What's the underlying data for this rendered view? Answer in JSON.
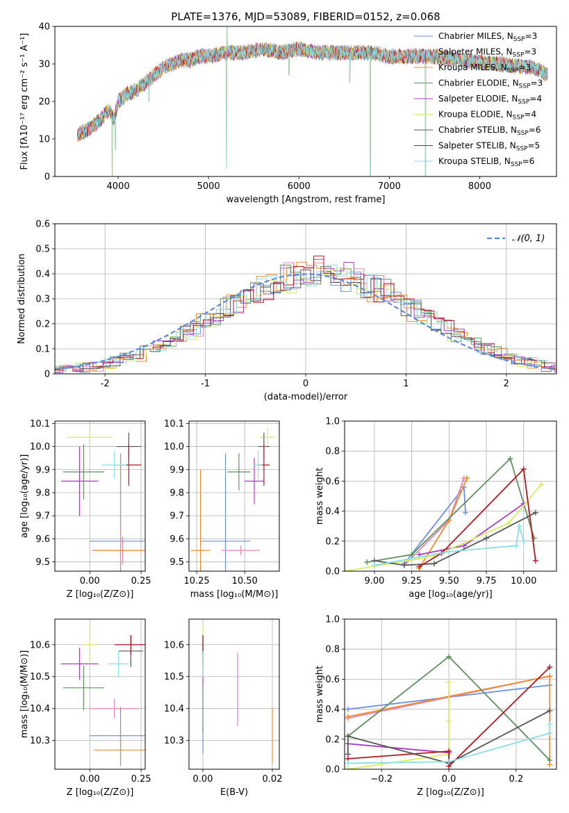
{
  "palette": [
    "#6a8fe0",
    "#e484b6",
    "#f08a2a",
    "#5f8f5f",
    "#a83cc8",
    "#d8ec62",
    "#555555",
    "#b8161e",
    "#88dfe6"
  ],
  "chart_data": [
    {
      "id": "spectrum",
      "type": "line",
      "title": "PLATE=1376, MJD=53089, FIBERID=0152, z=0.068",
      "xlabel": "wavelength [Angstrom, rest frame]",
      "ylabel": "Flux [fλ10⁻¹⁷ erg cm⁻² s⁻¹ A⁻¹]",
      "xlim": [
        3300,
        8850
      ],
      "ylim": [
        0,
        40
      ],
      "xticks": [
        4000,
        5000,
        6000,
        7000,
        8000
      ],
      "yticks": [
        0,
        10,
        20,
        30,
        40
      ],
      "grid": false,
      "legend_position": "top-right",
      "legend": [
        "Chabrier MILES, N_SSP=3",
        "Salpeter MILES, N_SSP=3",
        "Kroupa MILES, N_SSP=3",
        "Chabrier ELODIE, N_SSP=3",
        "Salpeter ELODIE, N_SSP=4",
        "Kroupa ELODIE, N_SSP=4",
        "Chabrier STELIB, N_SSP=6",
        "Salpeter STELIB, N_SSP=5",
        "Kroupa STELIB, N_SSP=6"
      ],
      "continuum": {
        "x": [
          3550,
          3700,
          3800,
          3900,
          3950,
          4000,
          4100,
          4200,
          4300,
          4400,
          4500,
          4600,
          4700,
          4800,
          4900,
          5000,
          5200,
          5400,
          5600,
          5800,
          6000,
          6200,
          6400,
          6600,
          6800,
          7000,
          7200,
          7400,
          7500,
          7800,
          8200,
          8600,
          8750
        ],
        "y": [
          11,
          13,
          15,
          18,
          15,
          20,
          22,
          23,
          25,
          27,
          29,
          30,
          31,
          31,
          32,
          32,
          33,
          33,
          34,
          33,
          34,
          33,
          33,
          33,
          33,
          32,
          32,
          32,
          32,
          31,
          30,
          29,
          27
        ]
      },
      "features": [
        {
          "x": 3935,
          "y": 0
        },
        {
          "x": 3970,
          "y": 7
        },
        {
          "x": 5200,
          "y": 2
        },
        {
          "x": 5205,
          "y": 40
        },
        {
          "x": 5890,
          "y": 27
        },
        {
          "x": 6563,
          "y": 25
        },
        {
          "x": 6790,
          "y": 0
        },
        {
          "x": 7400,
          "y": 0
        },
        {
          "x": 4340,
          "y": 20
        }
      ]
    },
    {
      "id": "residuals",
      "type": "histogram",
      "xlabel": "(data-model)/error",
      "ylabel": "Normed distribution",
      "xlim": [
        -2.5,
        2.5
      ],
      "ylim": [
        0,
        0.6
      ],
      "xticks": [
        -2,
        -1,
        0,
        1,
        2
      ],
      "yticks": [
        0,
        0.1,
        0.2,
        0.3,
        0.4,
        0.5,
        0.6
      ],
      "grid": true,
      "bin_width": 0.1,
      "legend": [
        "𝒩(0, 1)"
      ],
      "legend_position": "top-right",
      "gaussian": {
        "mean": 0,
        "sigma": 1
      }
    },
    {
      "id": "age_vs_Z",
      "type": "errorbar",
      "xlabel": "Z [log₁₀(Z/Z⊙)]",
      "ylabel": "age  [log₁₀(age/yr)]",
      "xlim": [
        -0.17,
        0.27
      ],
      "ylim": [
        9.46,
        10.11
      ],
      "xticks": [
        0,
        0.25
      ],
      "xticklabels": [
        "0.00",
        "0.25"
      ],
      "yticks": [
        9.5,
        9.6,
        9.7,
        9.8,
        9.9,
        10.0,
        10.1
      ],
      "yticklabels": [
        "9.5",
        "9.6",
        "9.7",
        "9.8",
        "9.9",
        "10.0",
        "10.1"
      ],
      "grid": true,
      "points": [
        {
          "x": 0.15,
          "y": 9.59,
          "xerr": 0.15,
          "yerr": 0.38
        },
        {
          "x": 0.16,
          "y": 9.55,
          "xerr": 0.15,
          "yerr": 0.06
        },
        {
          "x": 0.15,
          "y": 9.55,
          "xerr": 0.13,
          "yerr": 0.42
        },
        {
          "x": -0.03,
          "y": 9.89,
          "xerr": 0.1,
          "yerr": 0.12
        },
        {
          "x": -0.05,
          "y": 9.85,
          "xerr": 0.09,
          "yerr": 0.15
        },
        {
          "x": 0.0,
          "y": 10.04,
          "xerr": 0.11,
          "yerr": 0.04
        },
        {
          "x": 0.19,
          "y": 10.0,
          "xerr": 0.06,
          "yerr": 0.06
        },
        {
          "x": 0.19,
          "y": 9.92,
          "xerr": 0.06,
          "yerr": 0.09
        },
        {
          "x": 0.12,
          "y": 9.92,
          "xerr": 0.06,
          "yerr": 0.06
        }
      ]
    },
    {
      "id": "age_vs_mass",
      "type": "errorbar",
      "xlabel": "mass [log₁₀(M/M⊙)]",
      "ylabel": "",
      "xlim": [
        10.21,
        10.68
      ],
      "ylim": [
        9.46,
        10.11
      ],
      "xticks": [
        10.25,
        10.5
      ],
      "xticklabels": [
        "10.25",
        "10.50"
      ],
      "yticks": [
        9.5,
        9.6,
        9.7,
        9.8,
        9.9,
        10.0,
        10.1
      ],
      "yticklabels": [
        "9.5",
        "9.6",
        "9.7",
        "9.8",
        "9.9",
        "10.0",
        "10.1"
      ],
      "grid": true,
      "points": [
        {
          "x": 10.4,
          "y": 9.59,
          "xerr": 0.13,
          "yerr": 0.38
        },
        {
          "x": 10.48,
          "y": 9.55,
          "xerr": 0.1,
          "yerr": 0.02
        },
        {
          "x": 10.27,
          "y": 9.55,
          "xerr": 0.05,
          "yerr": 0.35
        },
        {
          "x": 10.47,
          "y": 9.89,
          "xerr": 0.06,
          "yerr": 0.08
        },
        {
          "x": 10.55,
          "y": 9.85,
          "xerr": 0.05,
          "yerr": 0.1
        },
        {
          "x": 10.62,
          "y": 10.04,
          "xerr": 0.04,
          "yerr": 0.04
        },
        {
          "x": 10.6,
          "y": 10.0,
          "xerr": 0.03,
          "yerr": 0.06
        },
        {
          "x": 10.6,
          "y": 9.92,
          "xerr": 0.03,
          "yerr": 0.09
        },
        {
          "x": 10.57,
          "y": 9.92,
          "xerr": 0.02,
          "yerr": 0.06
        }
      ]
    },
    {
      "id": "weight_vs_age",
      "type": "line",
      "xlabel": "age  [log₁₀(age/yr)]",
      "ylabel": "mass weight",
      "xlim": [
        8.8,
        10.22
      ],
      "ylim": [
        0,
        1.0
      ],
      "xticks": [
        9.0,
        9.25,
        9.5,
        9.75,
        10.0
      ],
      "xticklabels": [
        "9.00",
        "9.25",
        "9.50",
        "9.75",
        "10.00"
      ],
      "yticks": [
        0,
        0.2,
        0.4,
        0.6,
        0.8,
        1.0
      ],
      "yticklabels": [
        "0.0",
        "0.2",
        "0.4",
        "0.6",
        "0.8",
        "1.0"
      ],
      "grid": true,
      "series": [
        {
          "x": [
            9.2,
            9.6,
            9.61
          ],
          "y": [
            0.05,
            0.56,
            0.39
          ]
        },
        {
          "x": [
            9.2,
            9.5,
            9.6
          ],
          "y": [
            0.04,
            0.34,
            0.62
          ]
        },
        {
          "x": [
            9.3,
            9.5,
            9.62
          ],
          "y": [
            0.02,
            0.34,
            0.62
          ]
        },
        {
          "x": [
            8.95,
            9.25,
            9.91,
            10.07
          ],
          "y": [
            0.06,
            0.11,
            0.75,
            0.22
          ]
        },
        {
          "x": [
            9.3,
            9.6,
            10.0
          ],
          "y": [
            0.11,
            0.17,
            0.45
          ]
        },
        {
          "x": [
            8.8,
            9.4,
            9.9,
            10.12
          ],
          "y": [
            0.0,
            0.1,
            0.32,
            0.58
          ]
        },
        {
          "x": [
            9.0,
            9.2,
            9.4,
            9.75,
            10.08
          ],
          "y": [
            0.07,
            0.04,
            0.05,
            0.22,
            0.39
          ]
        },
        {
          "x": [
            9.3,
            9.45,
            10.0,
            10.08
          ],
          "y": [
            0.03,
            0.12,
            0.68,
            0.07
          ]
        },
        {
          "x": [
            9.0,
            9.5,
            9.95,
            9.97,
            10.0
          ],
          "y": [
            0.04,
            0.13,
            0.17,
            0.3,
            0.2
          ]
        }
      ]
    },
    {
      "id": "mass_vs_Z",
      "type": "errorbar",
      "xlabel": "Z [log₁₀(Z/Z⊙)]",
      "ylabel": "mass [log₁₀(M/M⊙)]",
      "xlim": [
        -0.17,
        0.27
      ],
      "ylim": [
        10.21,
        10.68
      ],
      "xticks": [
        0,
        0.25
      ],
      "xticklabels": [
        "0.00",
        "0.25"
      ],
      "yticks": [
        10.3,
        10.4,
        10.5,
        10.6
      ],
      "yticklabels": [
        "10.3",
        "10.4",
        "10.5",
        "10.6"
      ],
      "grid": true,
      "points": [
        {
          "x": 0.15,
          "y": 10.315,
          "xerr": 0.15,
          "yerr": 0.09
        },
        {
          "x": 0.12,
          "y": 10.4,
          "xerr": 0.12,
          "yerr": 0.03
        },
        {
          "x": 0.15,
          "y": 10.27,
          "xerr": 0.13,
          "yerr": 0.05
        },
        {
          "x": -0.03,
          "y": 10.465,
          "xerr": 0.1,
          "yerr": 0.07
        },
        {
          "x": -0.05,
          "y": 10.54,
          "xerr": 0.09,
          "yerr": 0.05
        },
        {
          "x": 0.0,
          "y": 10.6,
          "xerr": 0.03,
          "yerr": 0.06
        },
        {
          "x": 0.2,
          "y": 10.58,
          "xerr": 0.06,
          "yerr": 0.05
        },
        {
          "x": 0.2,
          "y": 10.6,
          "xerr": 0.08,
          "yerr": 0.03
        },
        {
          "x": 0.14,
          "y": 10.54,
          "xerr": 0.05,
          "yerr": 0.04
        }
      ]
    },
    {
      "id": "mass_vs_ebv",
      "type": "errorbar",
      "xlabel": "E(B-V)",
      "ylabel": "",
      "xlim": [
        -0.004,
        0.022
      ],
      "ylim": [
        10.21,
        10.68
      ],
      "xticks": [
        0.0,
        0.02
      ],
      "xticklabels": [
        "0.00",
        "0.02"
      ],
      "yticks": [
        10.3,
        10.4,
        10.5,
        10.6
      ],
      "yticklabels": [
        "10.3",
        "10.4",
        "10.5",
        "10.6"
      ],
      "grid": true,
      "points": [
        {
          "x": 0.0,
          "y": 10.3,
          "xerr": 0.0001,
          "yerr": 0.04
        },
        {
          "x": 0.01,
          "y": 10.46,
          "xerr": 0.0001,
          "yerr": 0.115
        },
        {
          "x": 0.02,
          "y": 10.315,
          "xerr": 0.0001,
          "yerr": 0.085
        },
        {
          "x": 0.0,
          "y": 10.4,
          "xerr": 0.0001,
          "yerr": 0.07
        },
        {
          "x": 0.0,
          "y": 10.53,
          "xerr": 0.0001,
          "yerr": 0.06
        },
        {
          "x": 0.0,
          "y": 10.6,
          "xerr": 0.0001,
          "yerr": 0.06
        },
        {
          "x": 0.0,
          "y": 10.58,
          "xerr": 0.0001,
          "yerr": 0.05
        },
        {
          "x": 0.0,
          "y": 10.6,
          "xerr": 0.0001,
          "yerr": 0.03
        },
        {
          "x": 0.0,
          "y": 10.54,
          "xerr": 0.0001,
          "yerr": 0.04
        }
      ]
    },
    {
      "id": "weight_vs_Z",
      "type": "line",
      "xlabel": "Z [log₁₀(Z/Z⊙)]",
      "ylabel": "mass weight",
      "xlim": [
        -0.31,
        0.32
      ],
      "ylim": [
        0,
        1.0
      ],
      "xticks": [
        -0.2,
        0.0,
        0.2
      ],
      "xticklabels": [
        "−0.2",
        "0.0",
        "0.2"
      ],
      "yticks": [
        0,
        0.2,
        0.4,
        0.6,
        0.8,
        1.0
      ],
      "yticklabels": [
        "0.0",
        "0.2",
        "0.4",
        "0.6",
        "0.8",
        "1.0"
      ],
      "grid": true,
      "series": [
        {
          "x": [
            -0.3,
            0.3
          ],
          "y": [
            0.4,
            0.56
          ]
        },
        {
          "x": [
            -0.3,
            0.3
          ],
          "y": [
            0.34,
            0.62
          ]
        },
        {
          "x": [
            -0.3,
            0.3,
            0.3
          ],
          "y": [
            0.35,
            0.62,
            0.03
          ]
        },
        {
          "x": [
            -0.3,
            0.0,
            0.3
          ],
          "y": [
            0.22,
            0.75,
            0.06
          ]
        },
        {
          "x": [
            -0.3,
            0.0,
            0.0
          ],
          "y": [
            0.17,
            0.11,
            0.12
          ]
        },
        {
          "x": [
            -0.3,
            0.0,
            0.0,
            0.0
          ],
          "y": [
            0.0,
            0.1,
            0.32,
            0.58
          ]
        },
        {
          "x": [
            -0.3,
            -0.3,
            0.0,
            0.3
          ],
          "y": [
            0.1,
            0.22,
            0.04,
            0.39
          ]
        },
        {
          "x": [
            -0.3,
            0.0,
            0.0,
            0.3
          ],
          "y": [
            0.07,
            0.12,
            0.02,
            0.68
          ]
        },
        {
          "x": [
            -0.3,
            0.0,
            0.3,
            0.3
          ],
          "y": [
            0.04,
            0.05,
            0.24,
            0.3
          ]
        }
      ]
    }
  ]
}
